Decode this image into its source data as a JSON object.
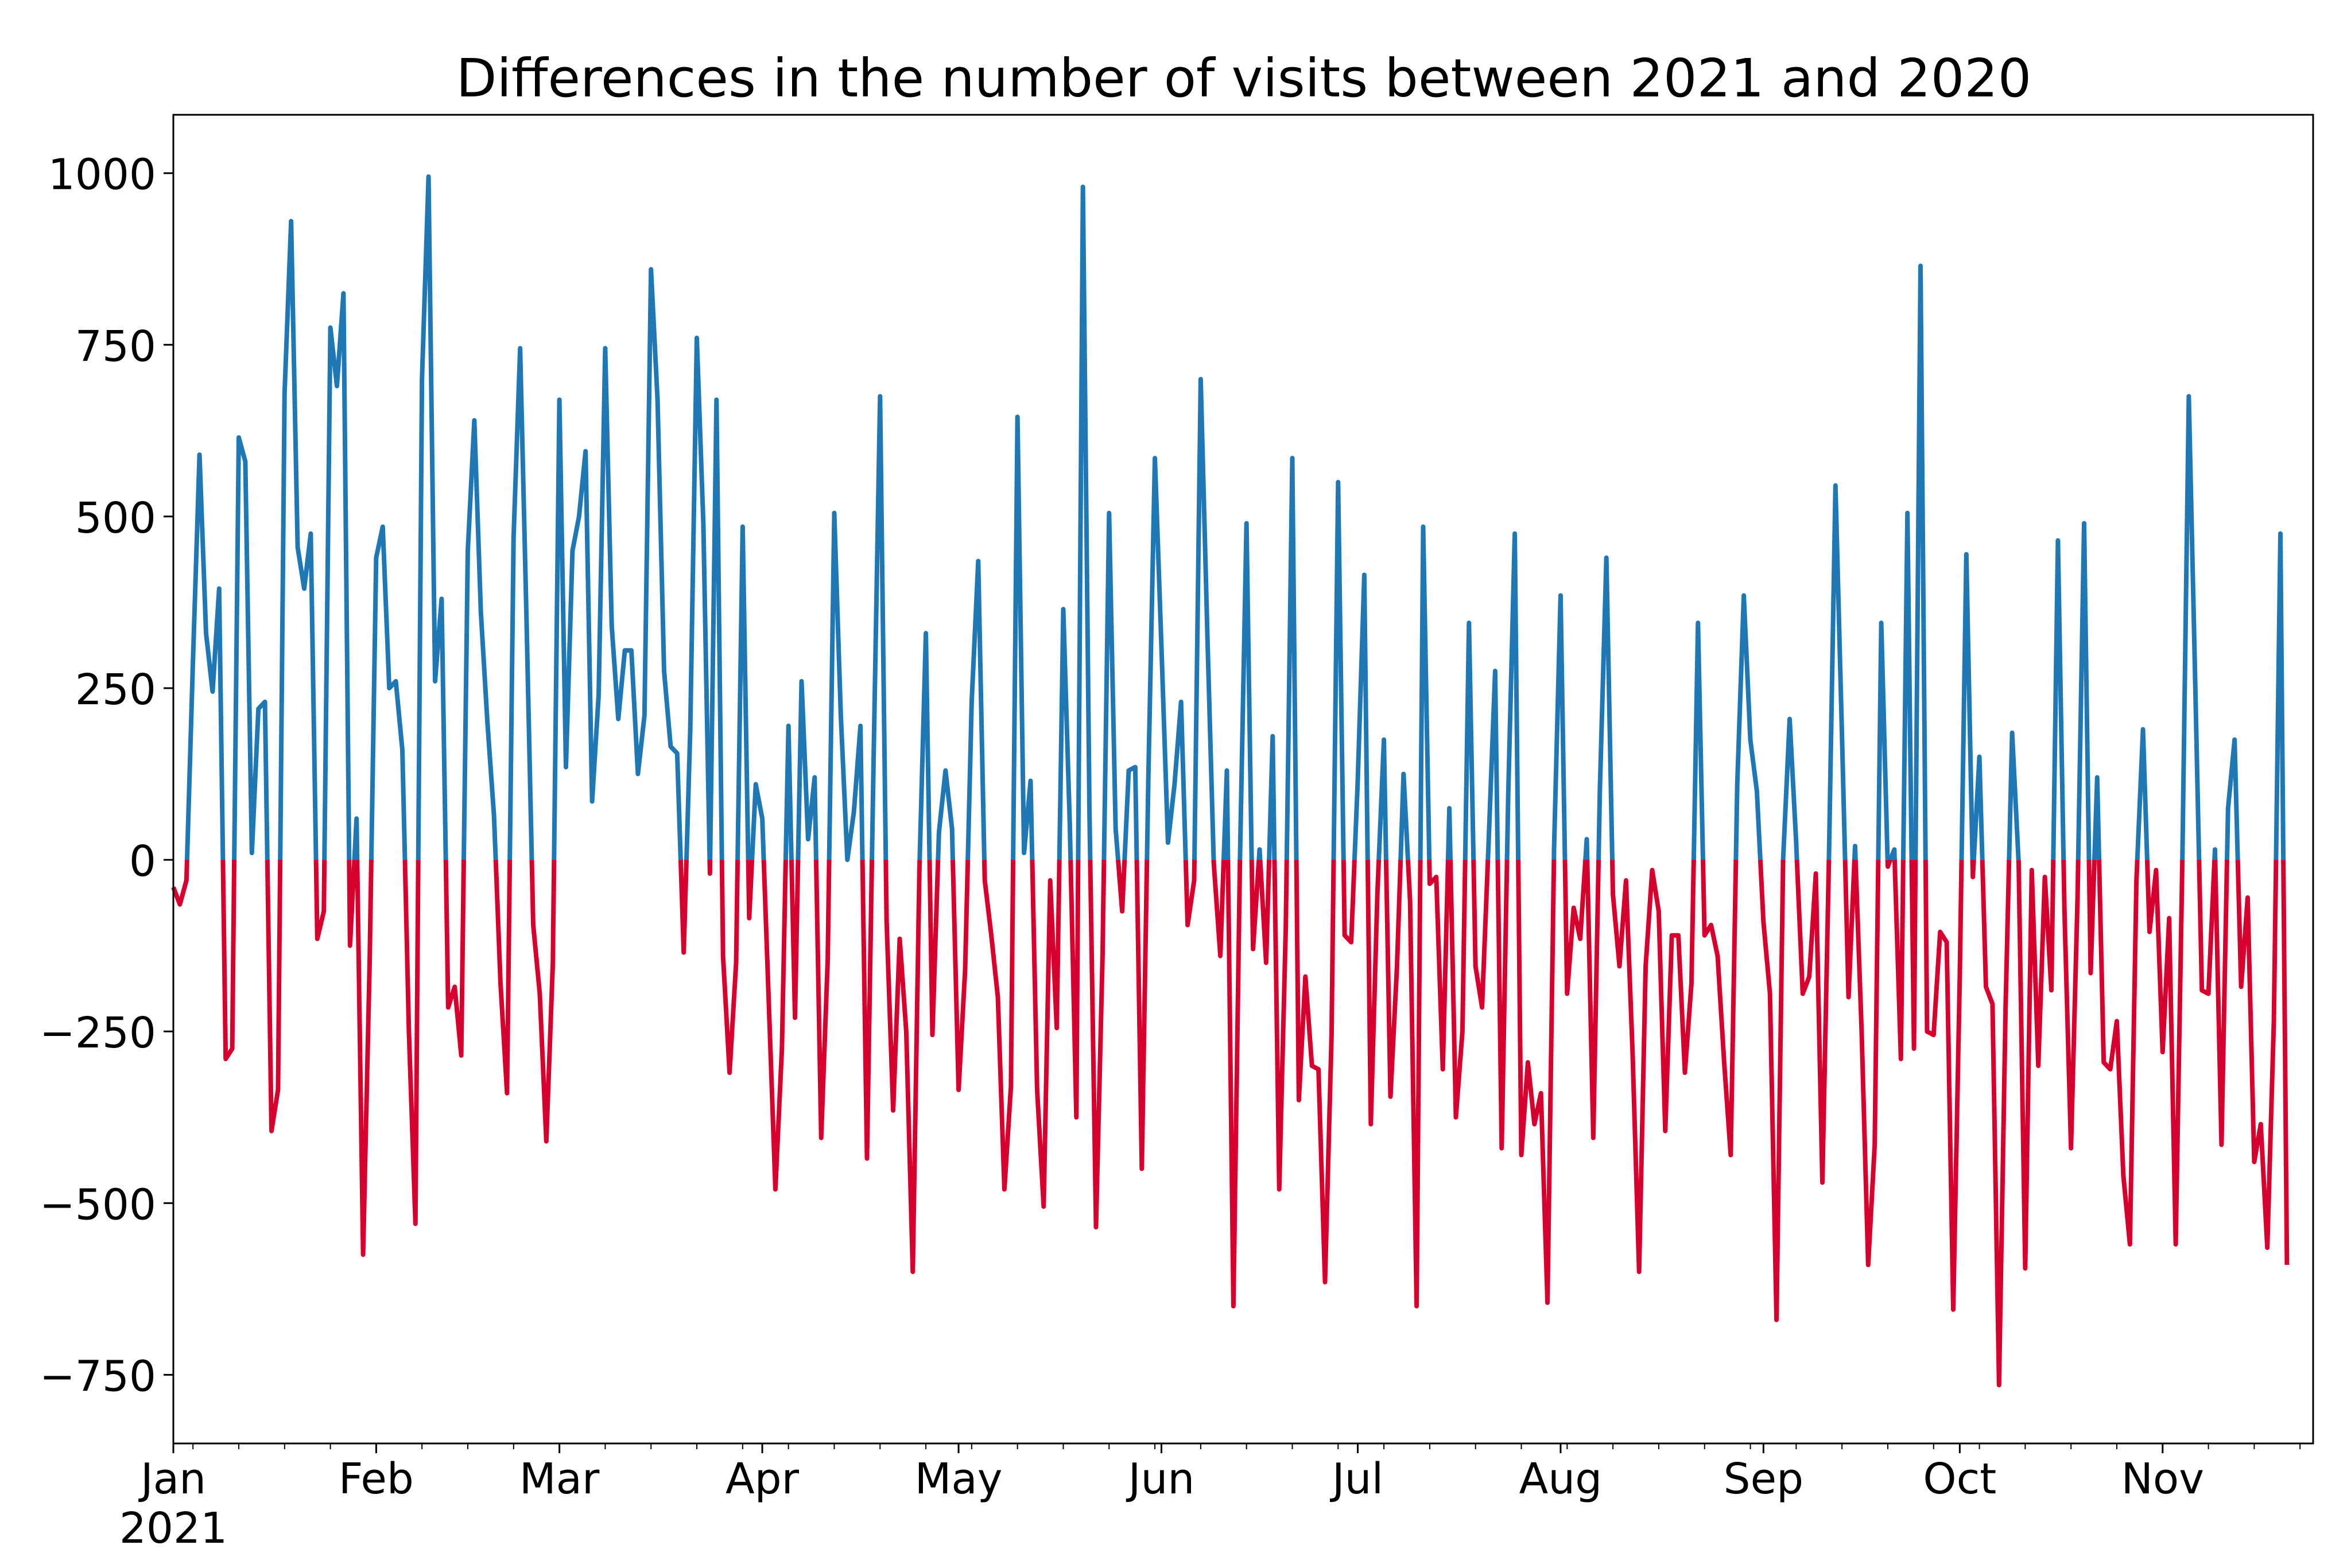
{
  "chart_data": {
    "type": "line",
    "title": "Differences in the number of visits between 2021 and 2020",
    "xlabel": "",
    "ylabel": "",
    "x_start": "2021-01-01",
    "x_end": "2021-11-24",
    "xlim": [
      "2021-01-01",
      "2021-11-24"
    ],
    "ylim": [
      -850,
      1085
    ],
    "yticks": [
      -750,
      -500,
      -250,
      0,
      250,
      500,
      750,
      1000
    ],
    "ytick_labels": [
      "−750",
      "−500",
      "−250",
      "0",
      "250",
      "500",
      "750",
      "1000"
    ],
    "xticks": [
      {
        "date": "2021-01-01",
        "label": "Jan",
        "sublabel": "2021"
      },
      {
        "date": "2021-02-01",
        "label": "Feb",
        "sublabel": ""
      },
      {
        "date": "2021-03-01",
        "label": "Mar",
        "sublabel": ""
      },
      {
        "date": "2021-04-01",
        "label": "Apr",
        "sublabel": ""
      },
      {
        "date": "2021-05-01",
        "label": "May",
        "sublabel": ""
      },
      {
        "date": "2021-06-01",
        "label": "Jun",
        "sublabel": ""
      },
      {
        "date": "2021-07-01",
        "label": "Jul",
        "sublabel": ""
      },
      {
        "date": "2021-08-01",
        "label": "Aug",
        "sublabel": ""
      },
      {
        "date": "2021-09-01",
        "label": "Sep",
        "sublabel": ""
      },
      {
        "date": "2021-10-01",
        "label": "Oct",
        "sublabel": ""
      },
      {
        "date": "2021-11-01",
        "label": "Nov",
        "sublabel": ""
      }
    ],
    "grid": false,
    "legend": "none",
    "colors": {
      "positive": "#1f77b4",
      "negative": "#d6002f"
    },
    "values": [
      -40,
      -65,
      -30,
      290,
      590,
      330,
      245,
      395,
      -290,
      -275,
      615,
      580,
      10,
      220,
      230,
      -395,
      -335,
      680,
      930,
      455,
      395,
      475,
      -115,
      -75,
      775,
      690,
      825,
      -125,
      60,
      -575,
      -150,
      440,
      485,
      250,
      260,
      160,
      -250,
      -530,
      700,
      995,
      260,
      380,
      -215,
      -185,
      -285,
      450,
      640,
      360,
      200,
      65,
      -180,
      -340,
      470,
      745,
      340,
      -95,
      -195,
      -410,
      -150,
      670,
      135,
      450,
      500,
      595,
      85,
      240,
      745,
      340,
      205,
      305,
      305,
      125,
      210,
      860,
      670,
      275,
      165,
      155,
      -135,
      190,
      760,
      490,
      -20,
      670,
      -140,
      -310,
      -150,
      485,
      -85,
      110,
      60,
      -210,
      -480,
      -275,
      195,
      -230,
      260,
      30,
      120,
      -405,
      -145,
      505,
      210,
      0,
      70,
      195,
      -435,
      140,
      675,
      -90,
      -365,
      -115,
      -250,
      -600,
      -20,
      330,
      -255,
      40,
      130,
      45,
      -335,
      -160,
      230,
      435,
      -30,
      -110,
      -200,
      -480,
      -330,
      645,
      10,
      115,
      -335,
      -505,
      -30,
      -245,
      365,
      50,
      -375,
      980,
      70,
      -535,
      -140,
      505,
      45,
      -75,
      130,
      135,
      -450,
      120,
      585,
      310,
      25,
      110,
      230,
      -95,
      -30,
      700,
      335,
      -5,
      -140,
      130,
      -650,
      0,
      490,
      -130,
      15,
      -150,
      180,
      -480,
      -100,
      585,
      -350,
      -170,
      -300,
      -305,
      -615,
      -255,
      550,
      -110,
      -120,
      115,
      415,
      -385,
      -50,
      175,
      -345,
      -155,
      125,
      -60,
      -650,
      485,
      -35,
      -25,
      -305,
      75,
      -375,
      -250,
      345,
      -155,
      -215,
      25,
      275,
      -420,
      95,
      475,
      -430,
      -295,
      -385,
      -340,
      -645,
      15,
      385,
      -195,
      -70,
      -115,
      30,
      -405,
      100,
      440,
      -50,
      -155,
      -30,
      -280,
      -600,
      -155,
      -15,
      -75,
      -395,
      -110,
      -110,
      -310,
      -180,
      345,
      -110,
      -95,
      -140,
      -295,
      -430,
      110,
      385,
      175,
      100,
      -90,
      -195,
      -670,
      0,
      205,
      25,
      -195,
      -170,
      -20,
      -470,
      0,
      545,
      180,
      -200,
      20,
      -250,
      -590,
      -415,
      345,
      -10,
      15,
      -290,
      505,
      -275,
      865,
      -250,
      -255,
      -105,
      -120,
      -655,
      -170,
      445,
      -25,
      150,
      -185,
      -210,
      -765,
      -215,
      185,
      -5,
      -595,
      -15,
      -300,
      -25,
      -190,
      465,
      -75,
      -420,
      -55,
      490,
      -165,
      120,
      -295,
      -305,
      -235,
      -460,
      -560,
      -30,
      190,
      -105,
      -15,
      -280,
      -85,
      -560,
      -10,
      675,
      250,
      -190,
      -195,
      15,
      -415,
      75,
      175,
      -185,
      -55,
      -440,
      -385,
      -565,
      -235,
      475,
      -590
    ]
  }
}
